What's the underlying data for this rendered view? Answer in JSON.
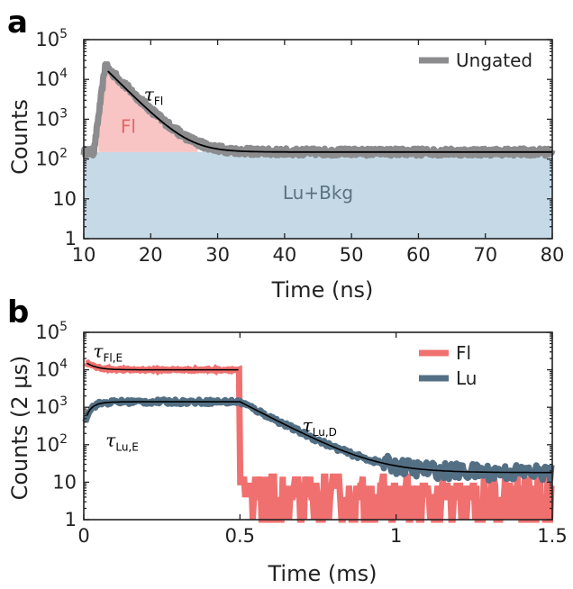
{
  "chart_data": [
    {
      "panel": "a",
      "type": "line",
      "xlabel": "Time (ns)",
      "ylabel": "Counts",
      "xlim": [
        10,
        80
      ],
      "ylim": [
        1,
        100000
      ],
      "yscale": "log",
      "xticks": [
        10,
        20,
        30,
        40,
        50,
        60,
        70,
        80
      ],
      "yticks": [
        {
          "v": 1,
          "base": "1",
          "exp": ""
        },
        {
          "v": 10,
          "base": "10",
          "exp": ""
        },
        {
          "v": 100,
          "base": "10",
          "exp": "2"
        },
        {
          "v": 1000,
          "base": "10",
          "exp": "3"
        },
        {
          "v": 10000,
          "base": "10",
          "exp": "4"
        },
        {
          "v": 100000,
          "base": "10",
          "exp": "5"
        }
      ],
      "legend": {
        "position": "top-right",
        "entries": [
          {
            "name": "Ungated",
            "color": "#8c8c8e"
          }
        ]
      },
      "series": [
        {
          "name": "Ungated",
          "color": "#8c8c8e",
          "background": 150,
          "rise": [
            11.5,
            12.5
          ],
          "peak": [
            13.2,
            22000
          ],
          "decay_tau": 2.6,
          "noise": 0.09
        },
        {
          "name": "fit",
          "color": "#000000",
          "x_start": 13.6,
          "amplitude": 16000,
          "tau": 2.6,
          "background": 150
        }
      ],
      "regions": [
        {
          "label": "Fl",
          "color": "#f8c4c4",
          "text_color": "#e06666",
          "label_x": 15.5,
          "label_y": 450
        },
        {
          "label": "Lu+Bkg",
          "color": "#c5dae6",
          "text_color": "#5c7282",
          "label_x": 45,
          "label_y": 10,
          "top": 150
        }
      ],
      "annotations": [
        {
          "text": "τ",
          "sub": "Fl",
          "x": 19,
          "y": 3000
        }
      ]
    },
    {
      "panel": "b",
      "type": "line",
      "xlabel": "Time (ms)",
      "ylabel": "Counts (2 µs)",
      "xlim": [
        0,
        1.5
      ],
      "ylim": [
        1,
        100000
      ],
      "yscale": "log",
      "xticks": [
        {
          "v": 0,
          "label": "0"
        },
        {
          "v": 0.5,
          "label": "0.5"
        },
        {
          "v": 1,
          "label": "1"
        },
        {
          "v": 1.5,
          "label": "1.5"
        }
      ],
      "yticks": [
        {
          "v": 1,
          "base": "1",
          "exp": ""
        },
        {
          "v": 10,
          "base": "10",
          "exp": ""
        },
        {
          "v": 100,
          "base": "10",
          "exp": "2"
        },
        {
          "v": 1000,
          "base": "10",
          "exp": "3"
        },
        {
          "v": 10000,
          "base": "10",
          "exp": "4"
        },
        {
          "v": 100000,
          "base": "10",
          "exp": "5"
        }
      ],
      "legend": {
        "position": "top-right",
        "entries": [
          {
            "name": "Fl",
            "color": "#f07070"
          },
          {
            "name": "Lu",
            "color": "#536f84"
          }
        ]
      },
      "series": [
        {
          "name": "Fl",
          "color": "#f07070",
          "plateau": 10000,
          "initial": 17000,
          "gate_off": 0.5,
          "after_level": 10
        },
        {
          "name": "Lu",
          "color": "#536f84",
          "plateau": 1400,
          "initial": 200,
          "rise_tau": 0.025,
          "gate_off": 0.5,
          "decay_tau": 0.1,
          "background": 18
        }
      ],
      "annotations": [
        {
          "text": "τ",
          "sub": "Fl,E",
          "x": 0.03,
          "y": 22000
        },
        {
          "text": "τ",
          "sub": "Lu,E",
          "x": 0.07,
          "y": 90
        },
        {
          "text": "τ",
          "sub": "Lu,D",
          "x": 0.7,
          "y": 230
        }
      ]
    }
  ]
}
